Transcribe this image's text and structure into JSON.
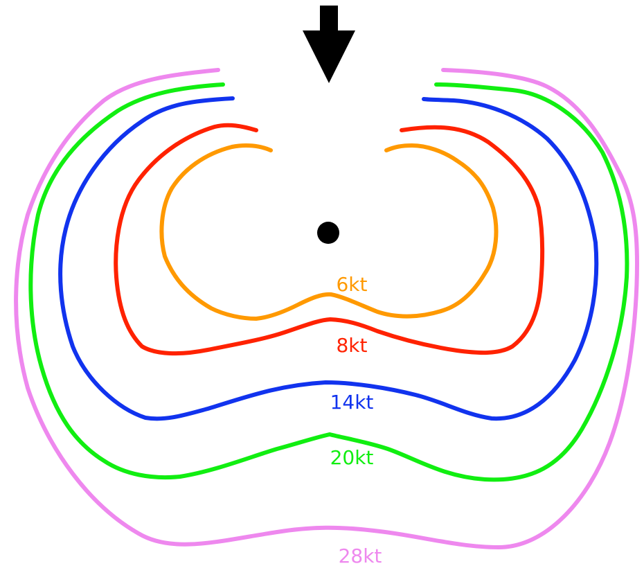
{
  "wind_arrow": {
    "icon": "down-arrow-icon",
    "color": "#000000"
  },
  "center_point": {
    "icon": "dot-icon",
    "color": "#000000"
  },
  "contours": [
    {
      "id": "6kt",
      "label": "6kt",
      "color": "#ff9900"
    },
    {
      "id": "8kt",
      "label": "8kt",
      "color": "#ff2200"
    },
    {
      "id": "14kt",
      "label": "14kt",
      "color": "#1133ee"
    },
    {
      "id": "20kt",
      "label": "20kt",
      "color": "#11ee11"
    },
    {
      "id": "28kt",
      "label": "28kt",
      "color": "#ee88ee"
    }
  ]
}
